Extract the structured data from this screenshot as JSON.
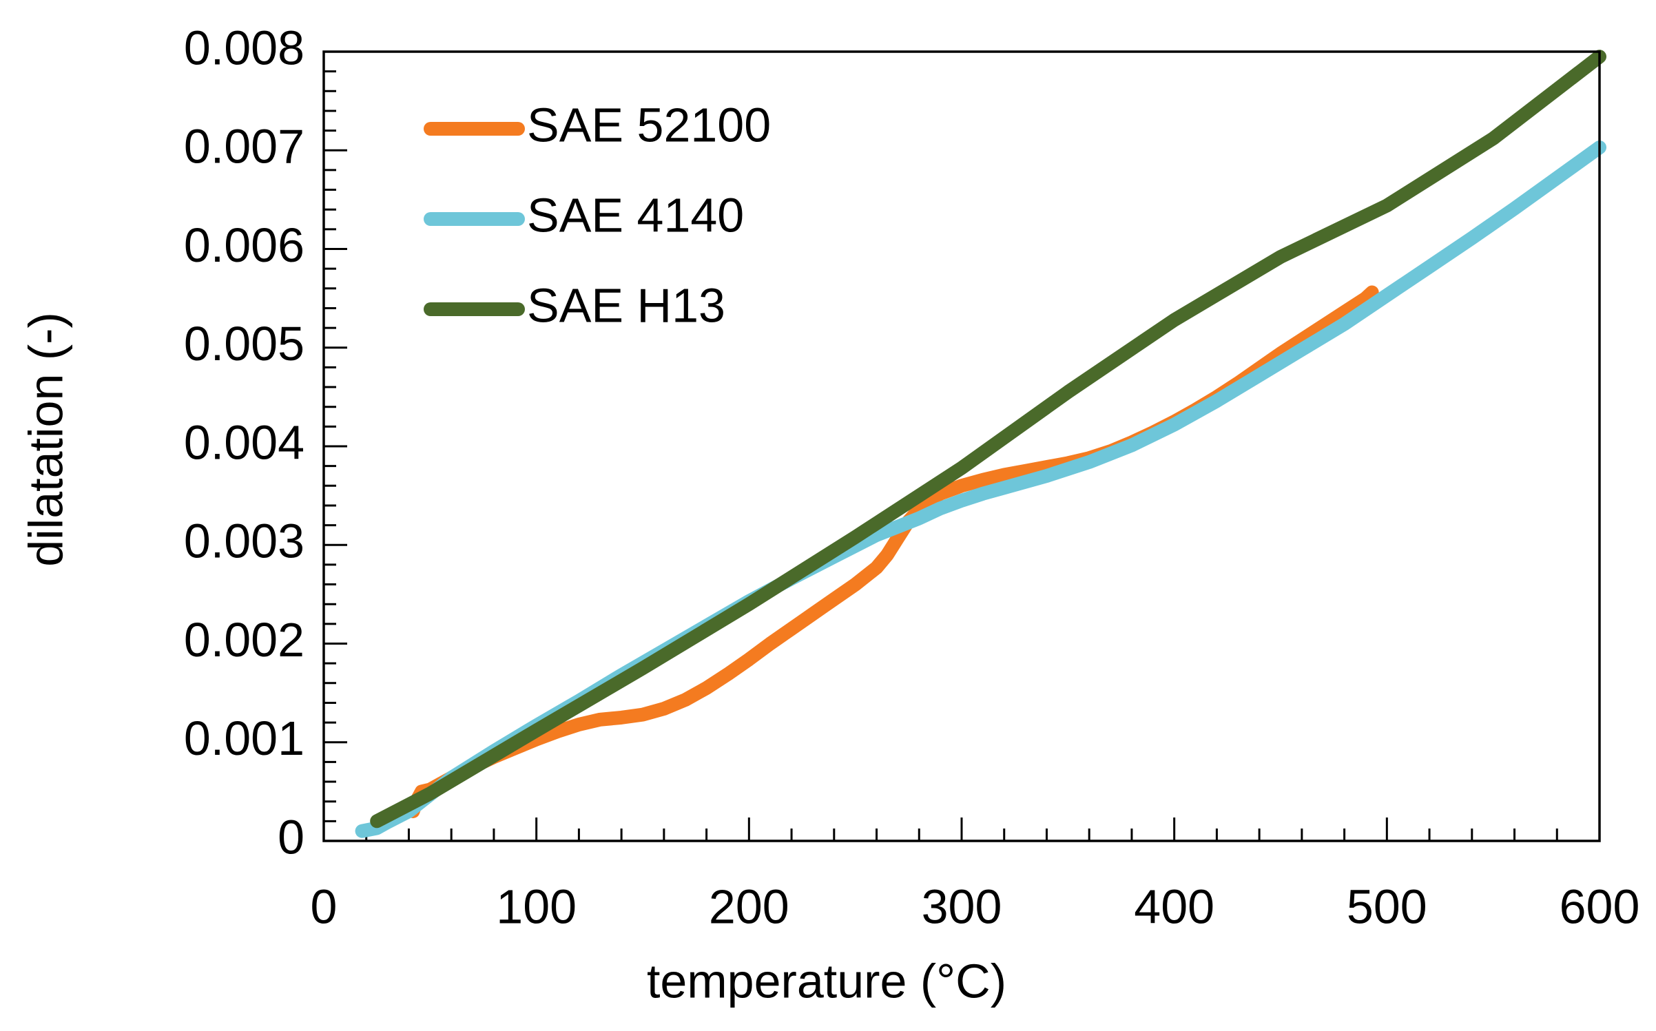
{
  "chart_data": {
    "type": "line",
    "title": "",
    "xlabel": "temperature  (°C)",
    "ylabel": "dilatation  (-)",
    "xlim": [
      0,
      600
    ],
    "ylim": [
      0,
      0.008
    ],
    "x_ticks": [
      0,
      100,
      200,
      300,
      400,
      500,
      600
    ],
    "x_tick_labels": [
      "0",
      "100",
      "200",
      "300",
      "400",
      "500",
      "600"
    ],
    "x_minor_step": 20,
    "y_ticks": [
      0,
      0.001,
      0.002,
      0.003,
      0.004,
      0.005,
      0.006,
      0.007,
      0.008
    ],
    "y_tick_labels": [
      "0",
      "0.001",
      "0.002",
      "0.003",
      "0.004",
      "0.005",
      "0.006",
      "0.007",
      "0.008"
    ],
    "y_minor_step": 0.0002,
    "grid": false,
    "legend_position": "top-left",
    "series": [
      {
        "name": "SAE 52100",
        "color": "#F47B20",
        "x": [
          42,
          44,
          46,
          50,
          60,
          70,
          80,
          90,
          100,
          110,
          120,
          130,
          140,
          150,
          160,
          170,
          180,
          190,
          200,
          210,
          220,
          230,
          240,
          250,
          260,
          265,
          270,
          275,
          280,
          285,
          290,
          300,
          310,
          320,
          330,
          340,
          350,
          360,
          370,
          380,
          390,
          400,
          410,
          420,
          430,
          440,
          450,
          460,
          470,
          480,
          490,
          493
        ],
        "y": [
          0.0003,
          0.00042,
          0.0005,
          0.00052,
          0.00064,
          0.00075,
          0.00085,
          0.00094,
          0.00103,
          0.00111,
          0.00118,
          0.00123,
          0.00125,
          0.00128,
          0.00134,
          0.00143,
          0.00155,
          0.00169,
          0.00184,
          0.002,
          0.00215,
          0.0023,
          0.00245,
          0.0026,
          0.00277,
          0.0029,
          0.00307,
          0.00324,
          0.00336,
          0.00345,
          0.00352,
          0.0036,
          0.00366,
          0.00371,
          0.00375,
          0.00379,
          0.00383,
          0.00388,
          0.00395,
          0.00404,
          0.00414,
          0.00425,
          0.00437,
          0.0045,
          0.00464,
          0.00479,
          0.00494,
          0.00508,
          0.00522,
          0.00536,
          0.0055,
          0.00556
        ]
      },
      {
        "name": "SAE 4140",
        "color": "#6EC6D9",
        "x": [
          18,
          25,
          30,
          40,
          60,
          80,
          100,
          120,
          140,
          160,
          180,
          200,
          220,
          240,
          260,
          280,
          290,
          300,
          310,
          320,
          340,
          360,
          380,
          400,
          420,
          440,
          460,
          480,
          500,
          520,
          540,
          560,
          580,
          600
        ],
        "y": [
          0.0001,
          0.00013,
          0.00019,
          0.0003,
          0.00064,
          0.00091,
          0.00117,
          0.00142,
          0.00168,
          0.00193,
          0.00218,
          0.00243,
          0.00266,
          0.00288,
          0.0031,
          0.00327,
          0.00337,
          0.00345,
          0.00352,
          0.00358,
          0.0037,
          0.00384,
          0.00401,
          0.00422,
          0.00446,
          0.00472,
          0.00498,
          0.00524,
          0.00553,
          0.00582,
          0.00611,
          0.00641,
          0.00672,
          0.00703
        ]
      },
      {
        "name": "SAE H13",
        "color": "#4A6A2A",
        "x": [
          25,
          50,
          100,
          150,
          200,
          250,
          300,
          350,
          400,
          450,
          500,
          550,
          600
        ],
        "y": [
          0.0002,
          0.00048,
          0.00112,
          0.00175,
          0.0024,
          0.00308,
          0.00378,
          0.00455,
          0.00528,
          0.00592,
          0.00644,
          0.00712,
          0.00795
        ]
      }
    ]
  }
}
